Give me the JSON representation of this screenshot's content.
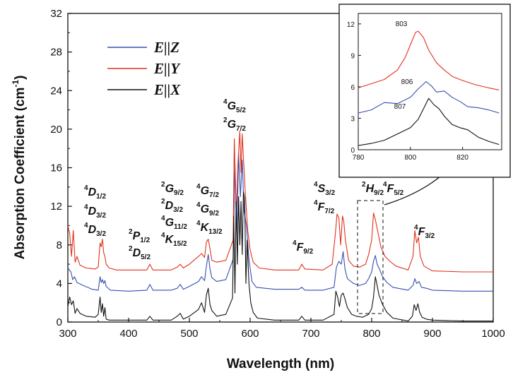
{
  "chart_data": {
    "type": "line",
    "xlabel": "Wavelength (nm)",
    "ylabel": "Absorption Coefficient (cm",
    "ylabel_sup": "-1",
    "ylabel_close": ")",
    "xlim": [
      300,
      1000
    ],
    "ylim": [
      0,
      32
    ],
    "x_ticks": [
      "300",
      "400",
      "500",
      "600",
      "700",
      "800",
      "900",
      "1000"
    ],
    "y_ticks": [
      "0",
      "4",
      "8",
      "12",
      "16",
      "20",
      "24",
      "28",
      "32"
    ],
    "legend_placement": "top-left",
    "series": [
      {
        "name": "E||Z",
        "color": "#3550b0",
        "x": [
          300,
          305,
          308,
          311,
          315,
          325,
          340,
          350,
          353,
          355,
          357,
          359,
          361,
          363,
          370,
          400,
          430,
          435,
          440,
          470,
          480,
          485,
          490,
          500,
          515,
          520,
          525,
          528,
          531,
          534,
          537,
          545,
          560,
          572,
          575,
          578,
          581,
          584,
          587,
          590,
          594,
          598,
          603,
          610,
          640,
          680,
          685,
          690,
          720,
          738,
          742,
          746,
          750,
          753,
          756,
          760,
          770,
          780,
          790,
          795,
          800,
          803,
          806,
          809,
          812,
          818,
          825,
          835,
          860,
          868,
          871,
          874,
          878,
          882,
          890,
          900,
          950,
          1000
        ],
        "y": [
          5.6,
          5.2,
          4.4,
          4.7,
          4.1,
          3.8,
          3.4,
          3.3,
          4.7,
          4.1,
          4.4,
          4.0,
          4.3,
          3.7,
          3.3,
          3.2,
          3.3,
          3.9,
          3.3,
          3.3,
          3.5,
          3.9,
          3.4,
          3.7,
          4.2,
          4.7,
          4.3,
          5.8,
          7.0,
          5.5,
          4.6,
          4.2,
          4.4,
          6.5,
          16.5,
          9.0,
          17.5,
          13.0,
          16.8,
          11.5,
          10.0,
          6.5,
          4.2,
          3.6,
          3.4,
          3.4,
          3.6,
          3.3,
          3.3,
          3.6,
          5.7,
          6.3,
          6.0,
          7.3,
          5.5,
          4.5,
          4.0,
          3.8,
          4.0,
          4.5,
          5.2,
          6.3,
          6.9,
          6.0,
          5.6,
          4.7,
          4.1,
          3.6,
          3.3,
          3.8,
          4.5,
          4.0,
          4.2,
          3.6,
          3.5,
          3.3,
          3.2,
          3.2
        ]
      },
      {
        "name": "E||Y",
        "color": "#e0321c",
        "x": [
          300,
          303,
          306,
          309,
          312,
          315,
          320,
          330,
          345,
          350,
          353,
          355,
          357,
          359,
          361,
          363,
          368,
          380,
          430,
          435,
          440,
          470,
          480,
          485,
          490,
          500,
          515,
          520,
          525,
          528,
          531,
          534,
          537,
          545,
          560,
          572,
          574,
          577,
          580,
          583,
          585,
          587,
          589,
          592,
          596,
          600,
          605,
          615,
          640,
          680,
          685,
          690,
          720,
          735,
          740,
          743,
          746,
          749,
          752,
          754,
          757,
          762,
          770,
          780,
          790,
          795,
          800,
          803,
          806,
          810,
          815,
          822,
          830,
          840,
          860,
          868,
          871,
          874,
          877,
          880,
          886,
          900,
          950,
          1000
        ],
        "y": [
          10.0,
          9.2,
          6.8,
          9.5,
          6.2,
          6.8,
          5.9,
          5.6,
          5.5,
          5.7,
          8.2,
          7.8,
          8.6,
          7.2,
          6.8,
          6.0,
          5.6,
          5.4,
          5.4,
          6.0,
          5.4,
          5.4,
          5.7,
          6.0,
          5.6,
          6.0,
          6.8,
          7.1,
          6.7,
          8.3,
          8.6,
          7.6,
          6.4,
          6.2,
          6.4,
          8.5,
          19.0,
          11.0,
          16.5,
          19.8,
          15.5,
          19.5,
          17.0,
          13.5,
          9.5,
          7.5,
          6.2,
          5.6,
          5.4,
          5.4,
          6.0,
          5.5,
          5.4,
          6.0,
          9.0,
          11.2,
          10.8,
          8.0,
          11.0,
          10.5,
          8.4,
          6.4,
          5.8,
          5.7,
          6.0,
          7.0,
          8.5,
          11.3,
          10.6,
          9.4,
          7.8,
          6.8,
          6.3,
          5.8,
          5.4,
          6.8,
          9.5,
          8.2,
          8.8,
          6.8,
          5.8,
          5.3,
          5.2,
          5.2
        ]
      },
      {
        "name": "E||X",
        "color": "#111111",
        "x": [
          300,
          303,
          306,
          309,
          312,
          315,
          320,
          330,
          345,
          350,
          353,
          355,
          357,
          359,
          361,
          363,
          368,
          380,
          430,
          435,
          440,
          470,
          480,
          485,
          490,
          500,
          515,
          520,
          525,
          528,
          531,
          534,
          537,
          545,
          560,
          571,
          573,
          575,
          577,
          579,
          581,
          583,
          585,
          587,
          589,
          591,
          593,
          595,
          598,
          601,
          605,
          612,
          640,
          680,
          685,
          690,
          720,
          738,
          741,
          744,
          747,
          750,
          753,
          756,
          760,
          767,
          775,
          785,
          795,
          800,
          803,
          806,
          809,
          812,
          818,
          825,
          835,
          860,
          867,
          870,
          873,
          876,
          879,
          883,
          890,
          900,
          950,
          1000
        ],
        "y": [
          1.6,
          2.6,
          1.8,
          2.2,
          0.9,
          1.4,
          0.9,
          0.6,
          0.5,
          0.8,
          2.6,
          1.0,
          1.9,
          0.6,
          1.5,
          0.3,
          0.2,
          0.2,
          0.2,
          0.6,
          0.2,
          0.2,
          0.6,
          0.9,
          0.3,
          0.6,
          1.3,
          2.0,
          1.0,
          2.8,
          3.5,
          1.8,
          1.2,
          0.6,
          0.8,
          2.5,
          11.0,
          3.0,
          12.5,
          6.0,
          13.0,
          8.0,
          12.5,
          7.0,
          13.5,
          12.8,
          4.0,
          8.5,
          4.0,
          2.0,
          1.0,
          0.4,
          0.2,
          0.2,
          0.6,
          0.2,
          0.2,
          0.8,
          3.2,
          2.6,
          1.6,
          2.8,
          3.0,
          2.4,
          1.5,
          0.8,
          0.6,
          0.5,
          0.8,
          1.4,
          2.6,
          4.7,
          3.8,
          2.8,
          1.8,
          1.0,
          0.4,
          0.1,
          0.6,
          1.8,
          1.2,
          1.9,
          1.0,
          0.5,
          0.3,
          0.2,
          0.1,
          0.1
        ]
      }
    ],
    "annotations": [
      {
        "sup": "4",
        "main": "D",
        "sub": "1/2"
      },
      {
        "sup": "4",
        "main": "D",
        "sub": "3/2"
      },
      {
        "sup": "4",
        "main": "D",
        "sub": "3/2"
      },
      {
        "sup": "2",
        "main": "P",
        "sub": "1/2"
      },
      {
        "sup": "2",
        "main": "D",
        "sub": "5/2"
      },
      {
        "sup": "2",
        "main": "G",
        "sub": "9/2"
      },
      {
        "sup": "2",
        "main": "D",
        "sub": "3/2"
      },
      {
        "sup": "4",
        "main": "G",
        "sub": "11/2"
      },
      {
        "sup": "4",
        "main": "K",
        "sub": "15/2"
      },
      {
        "sup": "4",
        "main": "G",
        "sub": "7/2"
      },
      {
        "sup": "4",
        "main": "G",
        "sub": "9/2"
      },
      {
        "sup": "4",
        "main": "K",
        "sub": "13/2"
      },
      {
        "sup": "4",
        "main": "G",
        "sub": "5/2"
      },
      {
        "sup": "2",
        "main": "G",
        "sub": "7/2"
      },
      {
        "sup": "4",
        "main": "F",
        "sub": "9/2"
      },
      {
        "sup": "4",
        "main": "S",
        "sub": "3/2"
      },
      {
        "sup": "4",
        "main": "F",
        "sub": "7/2"
      },
      {
        "sup": "2",
        "main": "H",
        "sub": "9/2"
      },
      {
        "sup": "4",
        "main": "F",
        "sub": "5/2"
      },
      {
        "sup": "4",
        "main": "F",
        "sub": "3/2"
      }
    ],
    "inset": {
      "xlim": [
        780,
        835
      ],
      "ylim": [
        0,
        13
      ],
      "x_ticks": [
        "780",
        "800",
        "820"
      ],
      "y_ticks": [
        "0",
        "3",
        "6",
        "9",
        "12"
      ],
      "peak_labels": [
        "803",
        "806",
        "807"
      ],
      "series": [
        {
          "name": "E||Y",
          "color": "#e0321c",
          "x": [
            780,
            785,
            790,
            795,
            798,
            800,
            802,
            803,
            805,
            807,
            810,
            813,
            816,
            820,
            825,
            830,
            834
          ],
          "y": [
            5.9,
            6.3,
            6.7,
            7.6,
            8.8,
            10.0,
            11.2,
            11.3,
            10.7,
            9.5,
            8.3,
            7.6,
            7.0,
            6.6,
            6.2,
            5.9,
            5.7
          ]
        },
        {
          "name": "E||Z",
          "color": "#3550b0",
          "x": [
            780,
            785,
            790,
            795,
            800,
            803,
            806,
            808,
            810,
            813,
            816,
            819,
            822,
            826,
            830,
            834
          ],
          "y": [
            3.5,
            3.8,
            4.5,
            4.4,
            5.0,
            5.8,
            6.5,
            6.1,
            5.5,
            5.6,
            5.0,
            4.6,
            4.1,
            4.0,
            3.8,
            3.5
          ]
        },
        {
          "name": "E||X",
          "color": "#111111",
          "x": [
            780,
            785,
            790,
            795,
            800,
            803,
            805,
            807,
            809,
            811,
            813,
            816,
            819,
            822,
            826,
            830,
            834
          ],
          "y": [
            0.4,
            0.6,
            0.9,
            1.5,
            2.1,
            2.9,
            3.9,
            4.9,
            4.3,
            3.9,
            3.2,
            2.4,
            2.1,
            1.9,
            1.2,
            0.8,
            0.5
          ]
        }
      ]
    }
  }
}
